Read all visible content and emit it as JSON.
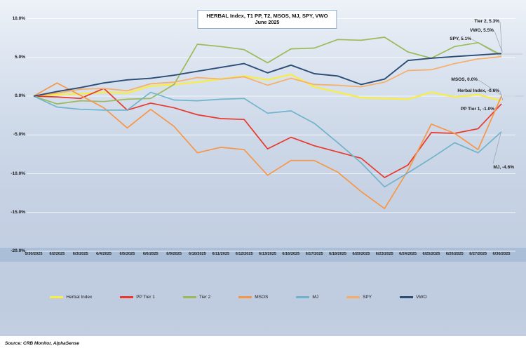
{
  "title": {
    "line1": "HERBAL Index, T1 PP, T2, MSOS, MJ, SPY, VWO",
    "line2": "June  2025"
  },
  "source": "Source: CRB Monitor, AlphaSense",
  "chart_data": {
    "type": "line",
    "title": "HERBAL Index, T1 PP, T2, MSOS, MJ, SPY, VWO — June 2025",
    "xlabel": "",
    "ylabel": "",
    "ylim": [
      -20,
      10
    ],
    "grid": true,
    "legend_position": "bottom",
    "y_ticks": [
      "10.0%",
      "5.0%",
      "0.0%",
      "-5.0%",
      "-10.0%",
      "-15.0%",
      "-20.0%"
    ],
    "x_labels": [
      "5/30/2025",
      "6/2/2025",
      "6/3/2025",
      "6/4/2025",
      "6/5/2025",
      "6/6/2025",
      "6/9/2025",
      "6/10/2025",
      "6/11/2025",
      "6/12/2025",
      "6/13/2025",
      "6/16/2025",
      "6/17/2025",
      "6/18/2025",
      "6/20/2025",
      "6/23/2025",
      "6/24/2025",
      "6/25/2025",
      "6/26/2025",
      "6/27/2025",
      "6/30/2025"
    ],
    "unit": "percent",
    "series": [
      {
        "name": "Herbal Index",
        "color": "#f7ec48",
        "values": [
          0,
          0.2,
          0.3,
          0.5,
          0.4,
          1.3,
          1.5,
          1.8,
          2.2,
          2.6,
          2.1,
          2.8,
          1.2,
          0.5,
          -0.2,
          -0.3,
          -0.4,
          0.5,
          -0.1,
          0.2,
          -0.6
        ]
      },
      {
        "name": "PP Tier 1",
        "color": "#e8392c",
        "values": [
          0,
          -0.1,
          -0.3,
          1.0,
          -1.8,
          -0.9,
          -1.5,
          -2.4,
          -2.9,
          -3.0,
          -6.8,
          -5.3,
          -6.4,
          -7.2,
          -8.0,
          -10.5,
          -8.9,
          -4.7,
          -4.8,
          -4.2,
          -1.0
        ]
      },
      {
        "name": "Tier 2",
        "color": "#9bbb59",
        "values": [
          0,
          -1.0,
          -0.6,
          -0.7,
          -0.4,
          -0.3,
          1.5,
          6.7,
          6.4,
          6.0,
          4.3,
          6.1,
          6.2,
          7.3,
          7.2,
          7.6,
          5.7,
          4.9,
          6.4,
          6.9,
          5.3
        ]
      },
      {
        "name": "MSOS",
        "color": "#f79646",
        "values": [
          0,
          1.7,
          0.1,
          -1.5,
          -4.1,
          -1.7,
          -3.9,
          -7.3,
          -6.6,
          -6.9,
          -10.2,
          -8.3,
          -8.3,
          -9.8,
          -12.3,
          -14.5,
          -9.6,
          -3.6,
          -4.8,
          -6.9,
          0.0
        ]
      },
      {
        "name": "MJ",
        "color": "#6fb4cb",
        "values": [
          0,
          -1.4,
          -1.7,
          -1.8,
          -1.8,
          0.5,
          -0.5,
          -0.6,
          -0.4,
          -0.3,
          -2.2,
          -1.9,
          -3.5,
          -6.0,
          -8.6,
          -11.7,
          -9.9,
          -8.0,
          -6.0,
          -7.3,
          -4.6
        ]
      },
      {
        "name": "SPY",
        "color": "#f6ae68",
        "values": [
          0,
          0.4,
          0.9,
          1.0,
          0.7,
          1.6,
          1.8,
          2.4,
          2.2,
          2.5,
          1.4,
          2.3,
          1.5,
          1.4,
          1.2,
          1.8,
          3.3,
          3.4,
          4.2,
          4.8,
          5.1
        ]
      },
      {
        "name": "VWO",
        "color": "#2c4d75",
        "values": [
          0,
          0.6,
          1.1,
          1.7,
          2.1,
          2.3,
          2.7,
          3.2,
          3.7,
          4.2,
          3.0,
          4.0,
          2.9,
          2.6,
          1.5,
          2.2,
          4.6,
          4.9,
          5.1,
          5.3,
          5.5
        ]
      }
    ],
    "annotations": [
      "Tier 2, 5.3%",
      "VWO, 5.5%",
      "SPY, 5.1%",
      "MSOS, 0.0%",
      "Herbal Index, -0.6%",
      "PP Tier 1, -1.0%",
      "MJ, -4.6%"
    ]
  },
  "legend": {
    "items": [
      "Herbal Index",
      "PP Tier 1",
      "Tier 2",
      "MSOS",
      "MJ",
      "SPY",
      "VWO"
    ]
  }
}
